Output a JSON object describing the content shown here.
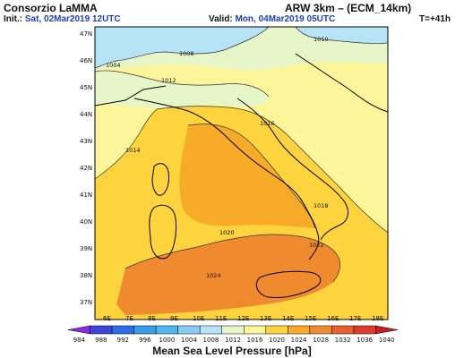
{
  "header": {
    "org": "Consorzio LaMMA",
    "model": "ARW 3km – (ECM_14km)",
    "init_label": "Init.:",
    "init_value": "Sat, 02Mar2019  12UTC",
    "valid_label": "Valid:",
    "valid_value": "Mon, 04Mar2019  05UTC",
    "lead": "T=+41h"
  },
  "map": {
    "lat_labels": [
      "47N",
      "46N",
      "45N",
      "44N",
      "43N",
      "42N",
      "41N",
      "40N",
      "39N",
      "38N",
      "37N"
    ],
    "lon_labels": [
      "6E",
      "7E",
      "8E",
      "9E",
      "10E",
      "11E",
      "12E",
      "13E",
      "14E",
      "15E",
      "16E",
      "17E",
      "18E"
    ],
    "contour_labels": [
      "1004",
      "1008",
      "1010",
      "1012",
      "1014",
      "1016",
      "1018",
      "1020",
      "1022",
      "1024"
    ],
    "colors": {
      "land_outline": "#000000",
      "sea_contour": "#000000"
    }
  },
  "colorbar": {
    "ticks": [
      "984",
      "988",
      "992",
      "996",
      "1000",
      "1004",
      "1008",
      "1012",
      "1016",
      "1020",
      "1024",
      "1028",
      "1032",
      "1036",
      "1040"
    ],
    "colors": [
      "#8a2be2",
      "#3f44d8",
      "#2a6fe5",
      "#3a9be8",
      "#4fb6f0",
      "#86cdf4",
      "#b7e3f7",
      "#e7f6c8",
      "#fdf59a",
      "#fdd43e",
      "#f8ab29",
      "#f08a2e",
      "#e9612d",
      "#e03a2e",
      "#c81e28"
    ],
    "title": "Mean Sea Level Pressure [hPa]"
  }
}
